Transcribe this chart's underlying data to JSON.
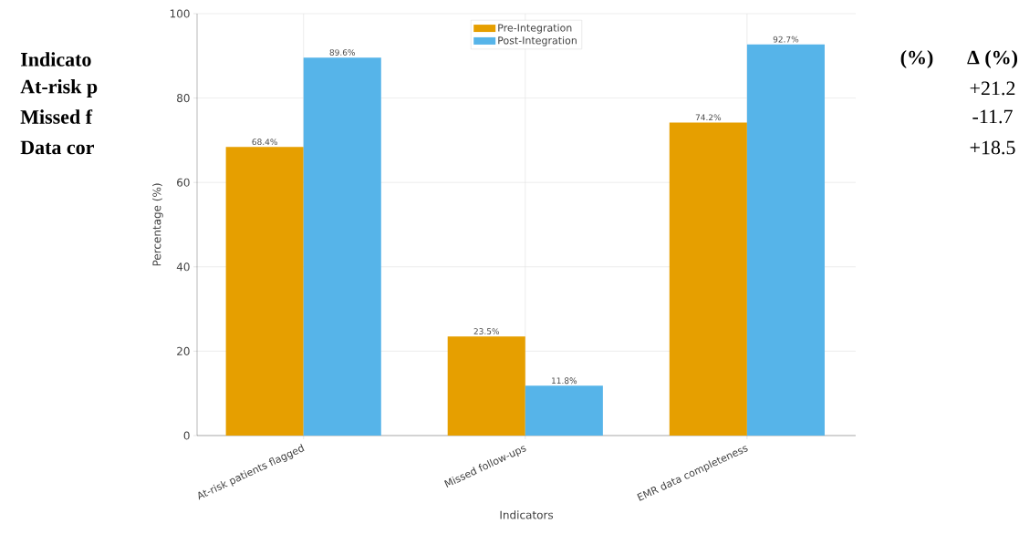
{
  "chart_data": {
    "type": "bar",
    "categories": [
      "At-risk patients flagged",
      "Missed follow-ups",
      "EMR data completeness"
    ],
    "series": [
      {
        "name": "Pre-Integration",
        "color": "#e69f00",
        "values": [
          68.4,
          23.5,
          74.2
        ],
        "value_labels": [
          "68.4%",
          "23.5%",
          "74.2%"
        ]
      },
      {
        "name": "Post-Integration",
        "color": "#56b4e9",
        "values": [
          89.6,
          11.8,
          92.7
        ],
        "value_labels": [
          "89.6%",
          "11.8%",
          "92.7%"
        ]
      }
    ],
    "xlabel": "Indicators",
    "ylabel": "Percentage (%)",
    "ylim": [
      0,
      100
    ],
    "yticks": [
      0,
      20,
      40,
      60,
      80,
      100
    ],
    "grid": true,
    "legend": "top",
    "annotations": [
      "Indicato",
      "At-risk p",
      "Missed f",
      "Data cor",
      "(%)",
      "Δ (%)",
      "+21.2",
      "-11.7",
      "+18.5"
    ]
  }
}
